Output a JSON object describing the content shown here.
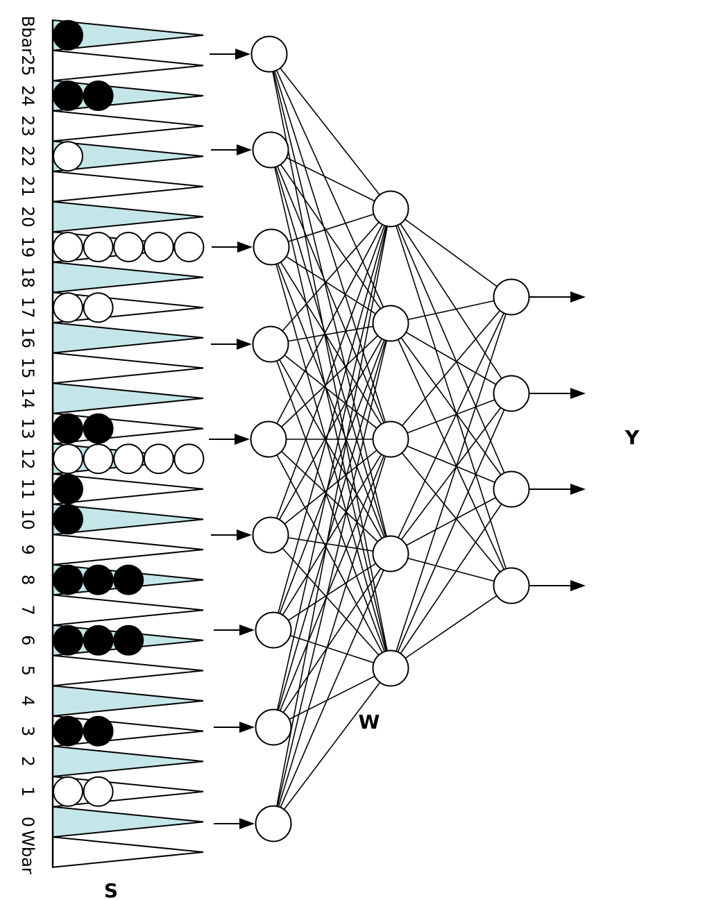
{
  "labels": {
    "board": "S",
    "weights": "W",
    "output": "Y"
  },
  "colors": {
    "shaded_point": "#c5e6e9",
    "black_checker": "#000000",
    "white_checker": "#ffffff"
  },
  "points": [
    "Bbar",
    "25",
    "24",
    "23",
    "22",
    "21",
    "20",
    "19",
    "18",
    "17",
    "16",
    "15",
    "14",
    "13",
    "12",
    "11",
    "10",
    "9",
    "8",
    "7",
    "6",
    "5",
    "4",
    "3",
    "2",
    "1",
    "0",
    "Wbar"
  ],
  "checkers": [
    {
      "point": "Bbar",
      "color": "black",
      "count": 1
    },
    {
      "point": "24",
      "color": "black",
      "count": 2
    },
    {
      "point": "22",
      "color": "white",
      "count": 1
    },
    {
      "point": "19",
      "color": "white",
      "count": 5
    },
    {
      "point": "17",
      "color": "white",
      "count": 2
    },
    {
      "point": "13",
      "color": "black",
      "count": 2
    },
    {
      "point": "12",
      "color": "white",
      "count": 5
    },
    {
      "point": "11",
      "color": "black",
      "count": 1
    },
    {
      "point": "10",
      "color": "black",
      "count": 1
    },
    {
      "point": "8",
      "color": "black",
      "count": 3
    },
    {
      "point": "6",
      "color": "black",
      "count": 3
    },
    {
      "point": "3",
      "color": "black",
      "count": 2
    },
    {
      "point": "1",
      "color": "white",
      "count": 2
    }
  ],
  "network": {
    "layer_sizes": [
      9,
      5,
      4
    ]
  }
}
